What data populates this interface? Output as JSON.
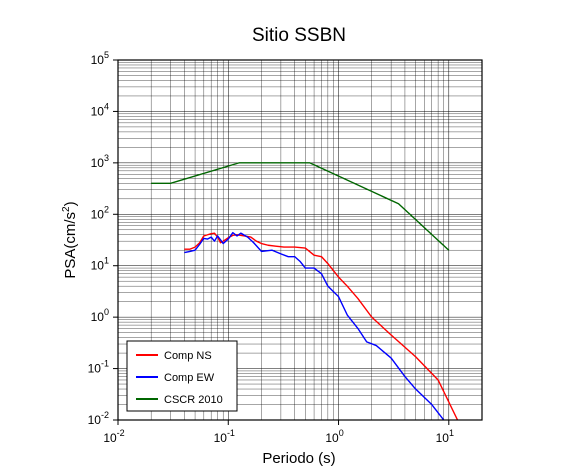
{
  "chart_data": {
    "type": "line",
    "title": "Sitio SSBN",
    "xlabel": "Periodo (s)",
    "ylabel": "PSA(cm/s",
    "ylabel_sup": "2",
    "ylabel_close": ")",
    "x_scale": "log",
    "y_scale": "log",
    "xlim": [
      0.01,
      20
    ],
    "ylim": [
      0.01,
      100000
    ],
    "grid": true,
    "legend_position": "bottom-left",
    "x_ticks": [
      {
        "base": "10",
        "exp": "-2",
        "value": 0.01
      },
      {
        "base": "10",
        "exp": "-1",
        "value": 0.1
      },
      {
        "base": "10",
        "exp": "0",
        "value": 1
      },
      {
        "base": "10",
        "exp": "1",
        "value": 10
      }
    ],
    "y_ticks": [
      {
        "base": "10",
        "exp": "-2",
        "value": 0.01
      },
      {
        "base": "10",
        "exp": "-1",
        "value": 0.1
      },
      {
        "base": "10",
        "exp": "0",
        "value": 1
      },
      {
        "base": "10",
        "exp": "1",
        "value": 10
      },
      {
        "base": "10",
        "exp": "2",
        "value": 100
      },
      {
        "base": "10",
        "exp": "3",
        "value": 1000
      },
      {
        "base": "10",
        "exp": "4",
        "value": 10000
      },
      {
        "base": "10",
        "exp": "5",
        "value": 100000
      }
    ],
    "series": [
      {
        "name": "Comp NS",
        "color": "#ff0000",
        "points": [
          [
            0.04,
            21
          ],
          [
            0.045,
            21
          ],
          [
            0.05,
            23
          ],
          [
            0.055,
            28
          ],
          [
            0.06,
            38
          ],
          [
            0.065,
            40
          ],
          [
            0.07,
            42
          ],
          [
            0.075,
            43
          ],
          [
            0.08,
            36
          ],
          [
            0.085,
            28
          ],
          [
            0.09,
            30
          ],
          [
            0.1,
            35
          ],
          [
            0.11,
            39
          ],
          [
            0.12,
            40
          ],
          [
            0.14,
            38
          ],
          [
            0.16,
            36
          ],
          [
            0.18,
            30
          ],
          [
            0.2,
            27
          ],
          [
            0.23,
            25
          ],
          [
            0.27,
            24
          ],
          [
            0.32,
            23
          ],
          [
            0.4,
            23
          ],
          [
            0.5,
            22
          ],
          [
            0.6,
            16
          ],
          [
            0.7,
            15
          ],
          [
            0.8,
            11
          ],
          [
            1.0,
            6
          ],
          [
            1.2,
            4
          ],
          [
            1.5,
            2.3
          ],
          [
            2.0,
            1.0
          ],
          [
            3.0,
            0.45
          ],
          [
            5.0,
            0.17
          ],
          [
            8.0,
            0.06
          ],
          [
            12.0,
            0.01
          ]
        ]
      },
      {
        "name": "Comp EW",
        "color": "#0000ff",
        "points": [
          [
            0.04,
            18
          ],
          [
            0.045,
            19
          ],
          [
            0.05,
            20
          ],
          [
            0.055,
            26
          ],
          [
            0.06,
            34
          ],
          [
            0.065,
            33
          ],
          [
            0.07,
            36
          ],
          [
            0.075,
            30
          ],
          [
            0.08,
            38
          ],
          [
            0.085,
            32
          ],
          [
            0.09,
            27
          ],
          [
            0.1,
            33
          ],
          [
            0.11,
            44
          ],
          [
            0.12,
            38
          ],
          [
            0.13,
            43
          ],
          [
            0.15,
            36
          ],
          [
            0.17,
            28
          ],
          [
            0.2,
            19
          ],
          [
            0.25,
            20
          ],
          [
            0.3,
            17
          ],
          [
            0.35,
            15
          ],
          [
            0.4,
            15
          ],
          [
            0.45,
            12
          ],
          [
            0.5,
            9
          ],
          [
            0.6,
            9
          ],
          [
            0.7,
            7
          ],
          [
            0.8,
            4
          ],
          [
            1.0,
            2.5
          ],
          [
            1.2,
            1.1
          ],
          [
            1.5,
            0.6
          ],
          [
            1.8,
            0.33
          ],
          [
            2.2,
            0.28
          ],
          [
            3.0,
            0.16
          ],
          [
            4.0,
            0.07
          ],
          [
            5.0,
            0.04
          ],
          [
            7.0,
            0.02
          ],
          [
            9.0,
            0.01
          ]
        ]
      },
      {
        "name": "CSCR 2010",
        "color": "#006600",
        "points": [
          [
            0.02,
            400
          ],
          [
            0.03,
            400
          ],
          [
            0.125,
            1000
          ],
          [
            0.55,
            1000
          ],
          [
            3.5,
            160
          ],
          [
            10.0,
            20
          ]
        ]
      }
    ]
  }
}
